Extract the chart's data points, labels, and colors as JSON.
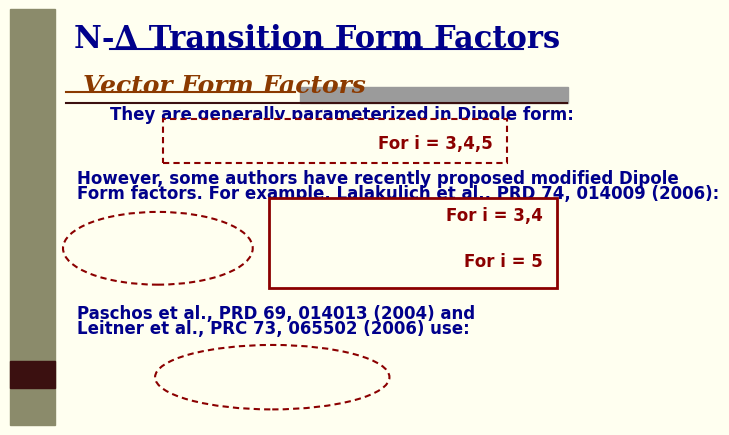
{
  "bg_color": "#FFFFF0",
  "left_bar_color": "#8B8B6B",
  "left_bar2_color": "#3B1010",
  "title": "N-Δ Transition Form Factors",
  "title_color": "#00008B",
  "title_fontsize": 22,
  "subtitle": "Vector Form Factors",
  "subtitle_color": "#8B3A00",
  "subtitle_fontsize": 18,
  "text1": "They are generally parameterized in Dipole form:",
  "text1_color": "#00008B",
  "text1_fontsize": 12,
  "box1_label": "For i = 3,4,5",
  "box1_color": "#8B0000",
  "text2a": "However, some authors have recently proposed modified Dipole",
  "text2b": "Form factors. For example, Lalakulich et al., PRD 74, 014009 (2006):",
  "text2_color": "#00008B",
  "text2_fontsize": 12,
  "box2_label1": "For i = 3,4",
  "box2_label2": "For i = 5",
  "box2_color": "#8B0000",
  "text3a": "Paschos et al., PRD 69, 014013 (2004) and",
  "text3b": "Leitner et al., PRC 73, 065502 (2006) use:",
  "text3_color": "#00008B",
  "text3_fontsize": 12,
  "red_color": "#8B0000",
  "label_fontsize": 12,
  "gray_bar_color": "#9B9B9B"
}
